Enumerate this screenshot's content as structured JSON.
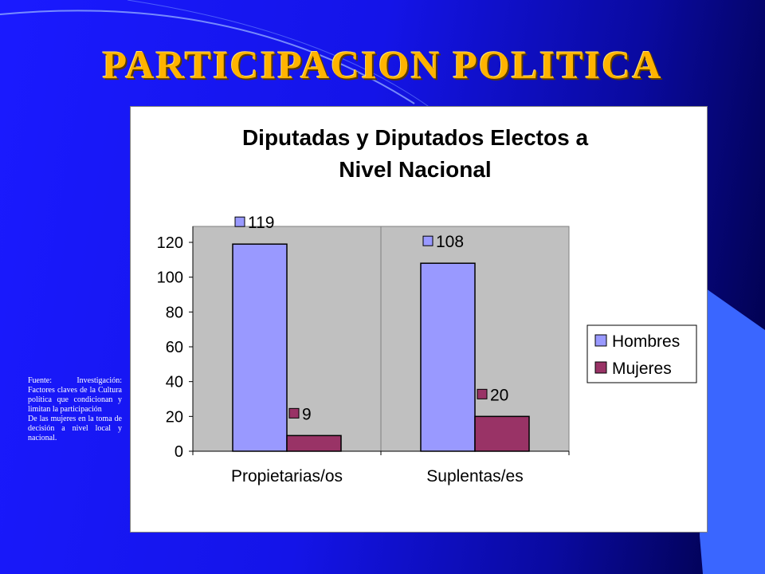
{
  "slide": {
    "title": "PARTICIPACION POLITICA",
    "source_lines": [
      "Fuente:  Investigación: Factores claves  de la Cultura  política  que condicionan y limitan la participación",
      "De las mujeres en la toma de decisión a nivel local y nacional."
    ],
    "colors": {
      "background": "#1414e8",
      "title": "#ffb300"
    }
  },
  "chart_data": {
    "type": "bar",
    "title": "Diputadas y Diputados Electos a Nivel Nacional",
    "title_lines": [
      "Diputadas y Diputados Electos a",
      "Nivel Nacional"
    ],
    "categories": [
      "Propietarias/os",
      "Suplentas/es"
    ],
    "series": [
      {
        "name": "Hombres",
        "values": [
          119,
          108
        ],
        "color": "#9999ff"
      },
      {
        "name": "Mujeres",
        "values": [
          9,
          20
        ],
        "color": "#993366"
      }
    ],
    "ylim": [
      0,
      120
    ],
    "yticks": [
      0,
      20,
      40,
      60,
      80,
      100,
      120
    ],
    "grid": false,
    "legend_position": "right",
    "plot_background": "#c0c0c0"
  }
}
